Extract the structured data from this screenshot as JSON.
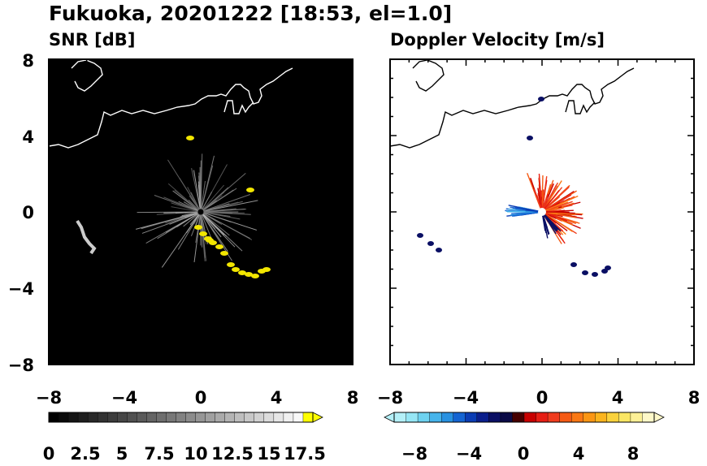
{
  "figure": {
    "title": "Fukuoka, 20201222 [18:53, el=1.0]"
  },
  "chart_data": [
    {
      "type": "heatmap",
      "title": "SNR [dB]",
      "xlim": [
        -8,
        8
      ],
      "ylim": [
        -8,
        8
      ],
      "xticks": [
        "−8",
        "−4",
        "0",
        "4",
        "8"
      ],
      "yticks": [
        "8",
        "4",
        "0",
        "−4",
        "−8"
      ],
      "background": "#000000",
      "colorbar": {
        "ticks": [
          "0",
          "2.5",
          "5",
          "7.5",
          "10",
          "12.5",
          "15",
          "17.5"
        ],
        "range": [
          0,
          20
        ],
        "extend": "max",
        "colors": [
          "#000000",
          "#0a0a0a",
          "#141414",
          "#1e1e1e",
          "#282828",
          "#323232",
          "#3c3c3c",
          "#464646",
          "#505050",
          "#5a5a5a",
          "#646464",
          "#6e6e6e",
          "#787878",
          "#828282",
          "#8c8c8c",
          "#969696",
          "#a0a0a0",
          "#aaaaaa",
          "#b4b4b4",
          "#bebebe",
          "#c8c8c8",
          "#d2d2d2",
          "#dcdcdc",
          "#e6e6e6",
          "#f0f0f0",
          "#f8f8f8",
          "#ffff00"
        ]
      },
      "echo_color": "#f2e600"
    },
    {
      "type": "heatmap",
      "title": "Doppler Velocity [m/s]",
      "xlim": [
        -8,
        8
      ],
      "ylim": [
        -8,
        8
      ],
      "xticks": [
        "−8",
        "−4",
        "0",
        "4",
        "8"
      ],
      "yticks": [],
      "background": "#ffffff",
      "colorbar": {
        "ticks": [
          "−8",
          "−4",
          "0",
          "4",
          "8"
        ],
        "range": [
          -10,
          10
        ],
        "extend": "both",
        "colors": [
          "#b4f0f8",
          "#96e6f5",
          "#6ed2f0",
          "#46b4eb",
          "#2891e1",
          "#1464d2",
          "#0a3cb4",
          "#0a1e8c",
          "#0a0f64",
          "#0a0a46",
          "#460000",
          "#c80000",
          "#e61e14",
          "#f03c1e",
          "#f55a14",
          "#fa7814",
          "#fa9614",
          "#fab41e",
          "#fad23c",
          "#fae664",
          "#fcf096",
          "#fef8c8"
        ]
      }
    }
  ]
}
